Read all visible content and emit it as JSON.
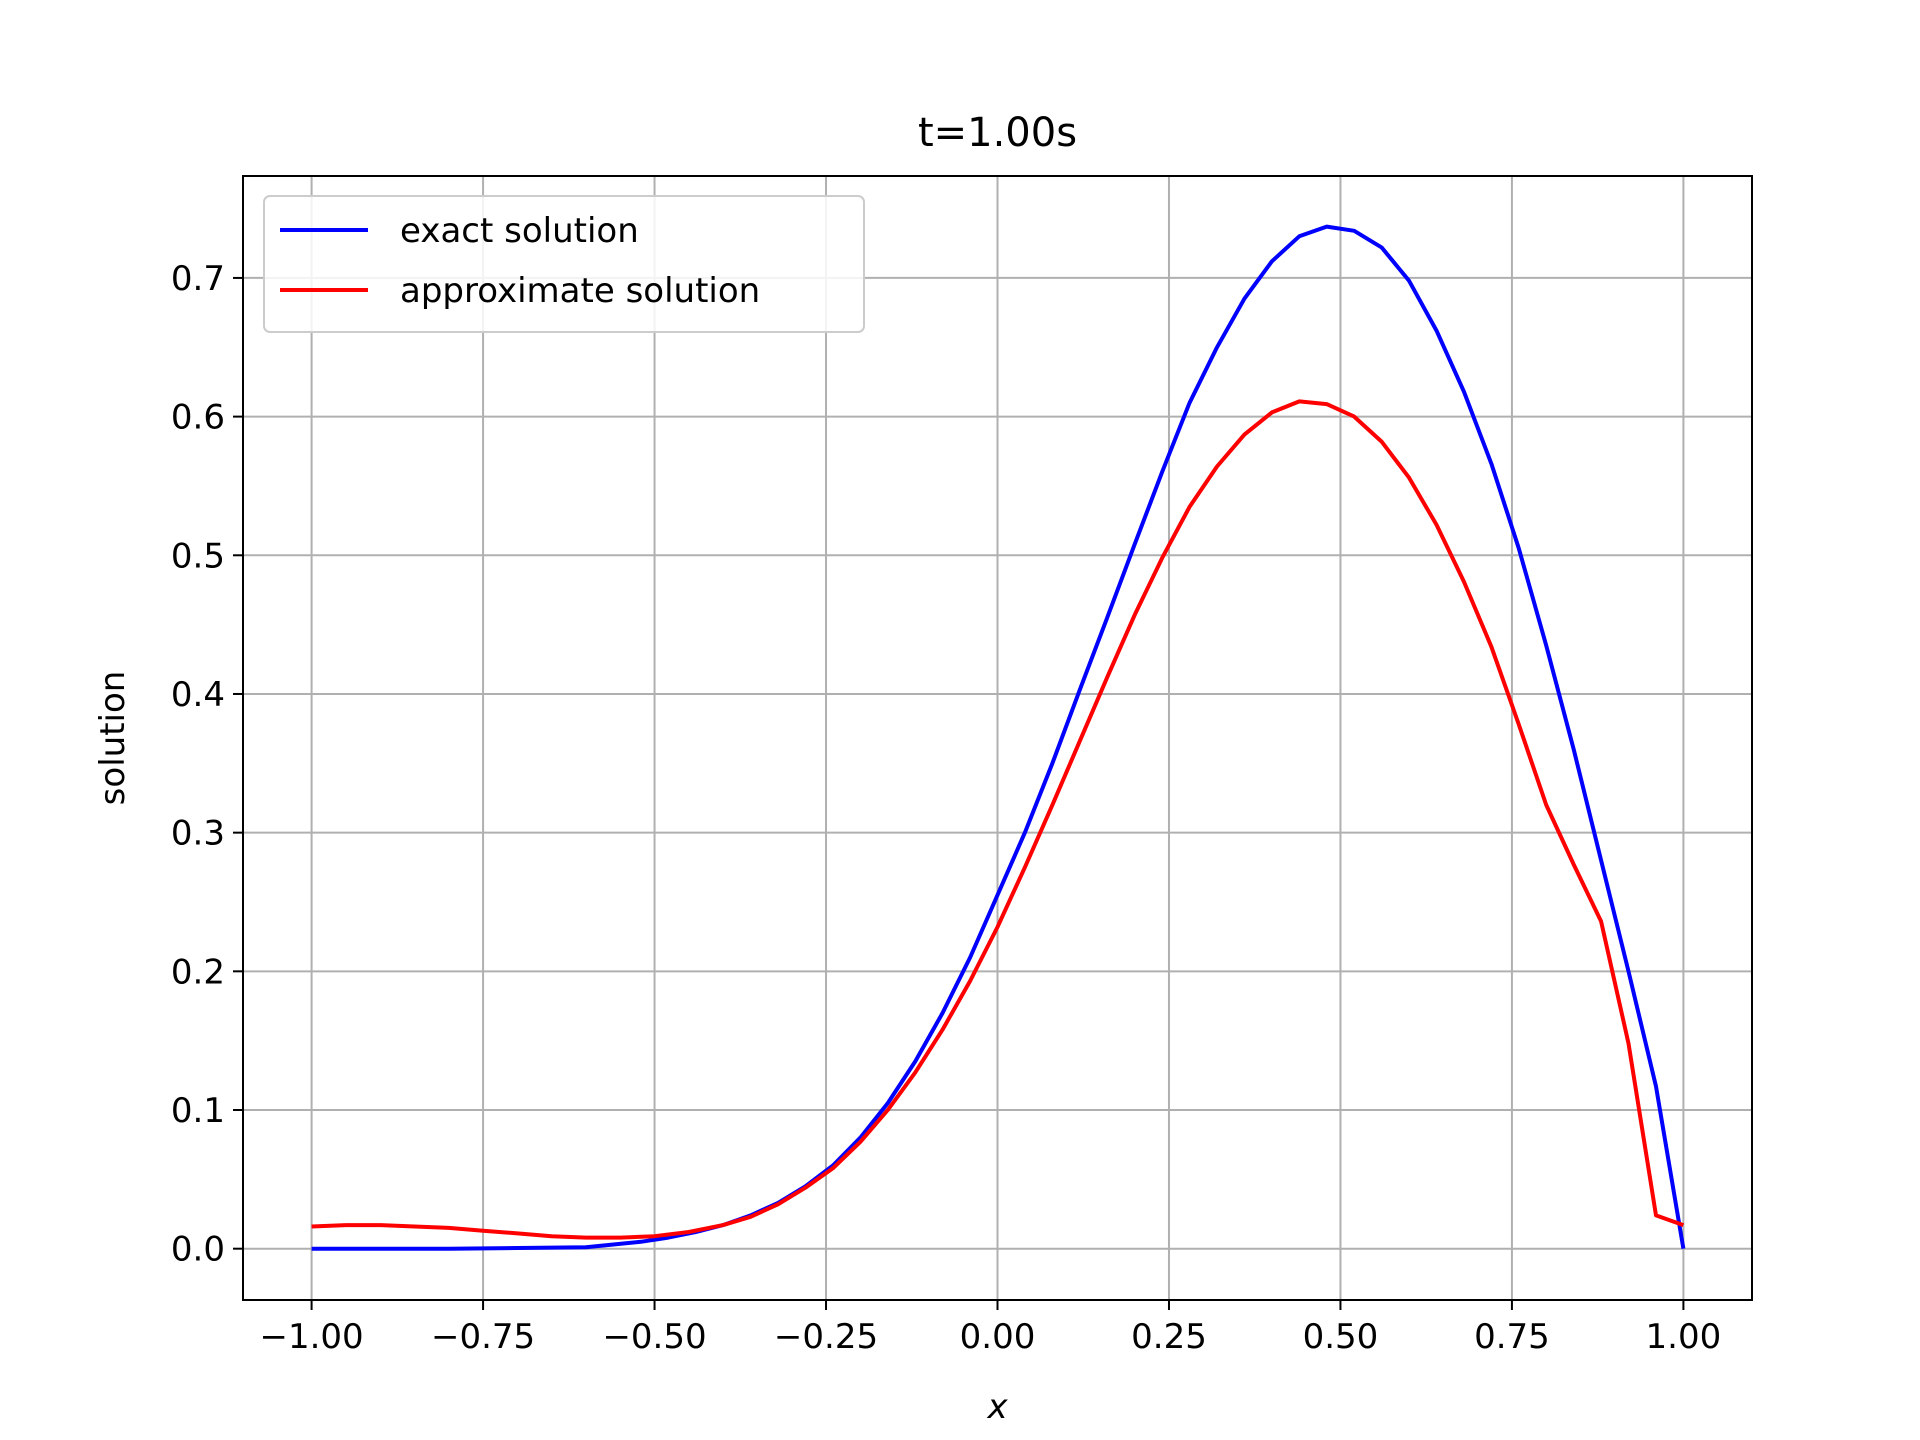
{
  "chart_data": {
    "type": "line",
    "title": "t=1.00s",
    "xlabel": "x",
    "ylabel": "solution",
    "xlim": [
      -1.1,
      1.1
    ],
    "ylim": [
      -0.037,
      0.7735
    ],
    "grid": true,
    "legend_position": "top-left",
    "x_ticks": [
      -1.0,
      -0.75,
      -0.5,
      -0.25,
      0.0,
      0.25,
      0.5,
      0.75,
      1.0
    ],
    "x_tick_labels": [
      "−1.00",
      "−0.75",
      "−0.50",
      "−0.25",
      "0.00",
      "0.25",
      "0.50",
      "0.75",
      "1.00"
    ],
    "y_ticks": [
      0.0,
      0.1,
      0.2,
      0.3,
      0.4,
      0.5,
      0.6,
      0.7
    ],
    "y_tick_labels": [
      "0.0",
      "0.1",
      "0.2",
      "0.3",
      "0.4",
      "0.5",
      "0.6",
      "0.7"
    ],
    "series": [
      {
        "name": "exact solution",
        "color": "#0000ff",
        "x": [
          -1.0,
          -0.9,
          -0.8,
          -0.7,
          -0.6,
          -0.56,
          -0.52,
          -0.48,
          -0.44,
          -0.4,
          -0.36,
          -0.32,
          -0.28,
          -0.24,
          -0.2,
          -0.16,
          -0.12,
          -0.08,
          -0.04,
          0.0,
          0.04,
          0.08,
          0.12,
          0.16,
          0.2,
          0.24,
          0.28,
          0.32,
          0.36,
          0.4,
          0.44,
          0.48,
          0.52,
          0.56,
          0.6,
          0.64,
          0.68,
          0.72,
          0.76,
          0.8,
          0.84,
          0.88,
          0.92,
          0.96,
          1.0
        ],
        "y": [
          0.0,
          0.0,
          0.0,
          0.0005,
          0.001,
          0.003,
          0.005,
          0.008,
          0.012,
          0.017,
          0.024,
          0.033,
          0.045,
          0.06,
          0.08,
          0.105,
          0.135,
          0.17,
          0.21,
          0.255,
          0.3,
          0.35,
          0.403,
          0.455,
          0.508,
          0.56,
          0.61,
          0.65,
          0.685,
          0.712,
          0.73,
          0.737,
          0.734,
          0.722,
          0.698,
          0.662,
          0.618,
          0.566,
          0.505,
          0.435,
          0.36,
          0.28,
          0.2,
          0.117,
          0.0
        ]
      },
      {
        "name": "approximate solution",
        "color": "#ff0000",
        "x": [
          -1.0,
          -0.95,
          -0.9,
          -0.85,
          -0.8,
          -0.75,
          -0.7,
          -0.65,
          -0.6,
          -0.55,
          -0.5,
          -0.45,
          -0.4,
          -0.36,
          -0.32,
          -0.28,
          -0.24,
          -0.2,
          -0.16,
          -0.12,
          -0.08,
          -0.04,
          0.0,
          0.04,
          0.08,
          0.12,
          0.16,
          0.2,
          0.24,
          0.28,
          0.32,
          0.36,
          0.4,
          0.44,
          0.48,
          0.52,
          0.56,
          0.6,
          0.64,
          0.68,
          0.72,
          0.76,
          0.8,
          0.84,
          0.88,
          0.92,
          0.96,
          1.0
        ],
        "y": [
          0.016,
          0.017,
          0.017,
          0.016,
          0.015,
          0.013,
          0.011,
          0.009,
          0.008,
          0.008,
          0.009,
          0.012,
          0.017,
          0.023,
          0.032,
          0.044,
          0.058,
          0.077,
          0.1,
          0.127,
          0.158,
          0.193,
          0.232,
          0.275,
          0.32,
          0.366,
          0.412,
          0.457,
          0.498,
          0.535,
          0.564,
          0.587,
          0.603,
          0.611,
          0.609,
          0.6,
          0.582,
          0.556,
          0.522,
          0.481,
          0.434,
          0.378,
          0.32,
          0.277,
          0.236,
          0.148,
          0.024,
          0.017
        ]
      }
    ]
  }
}
